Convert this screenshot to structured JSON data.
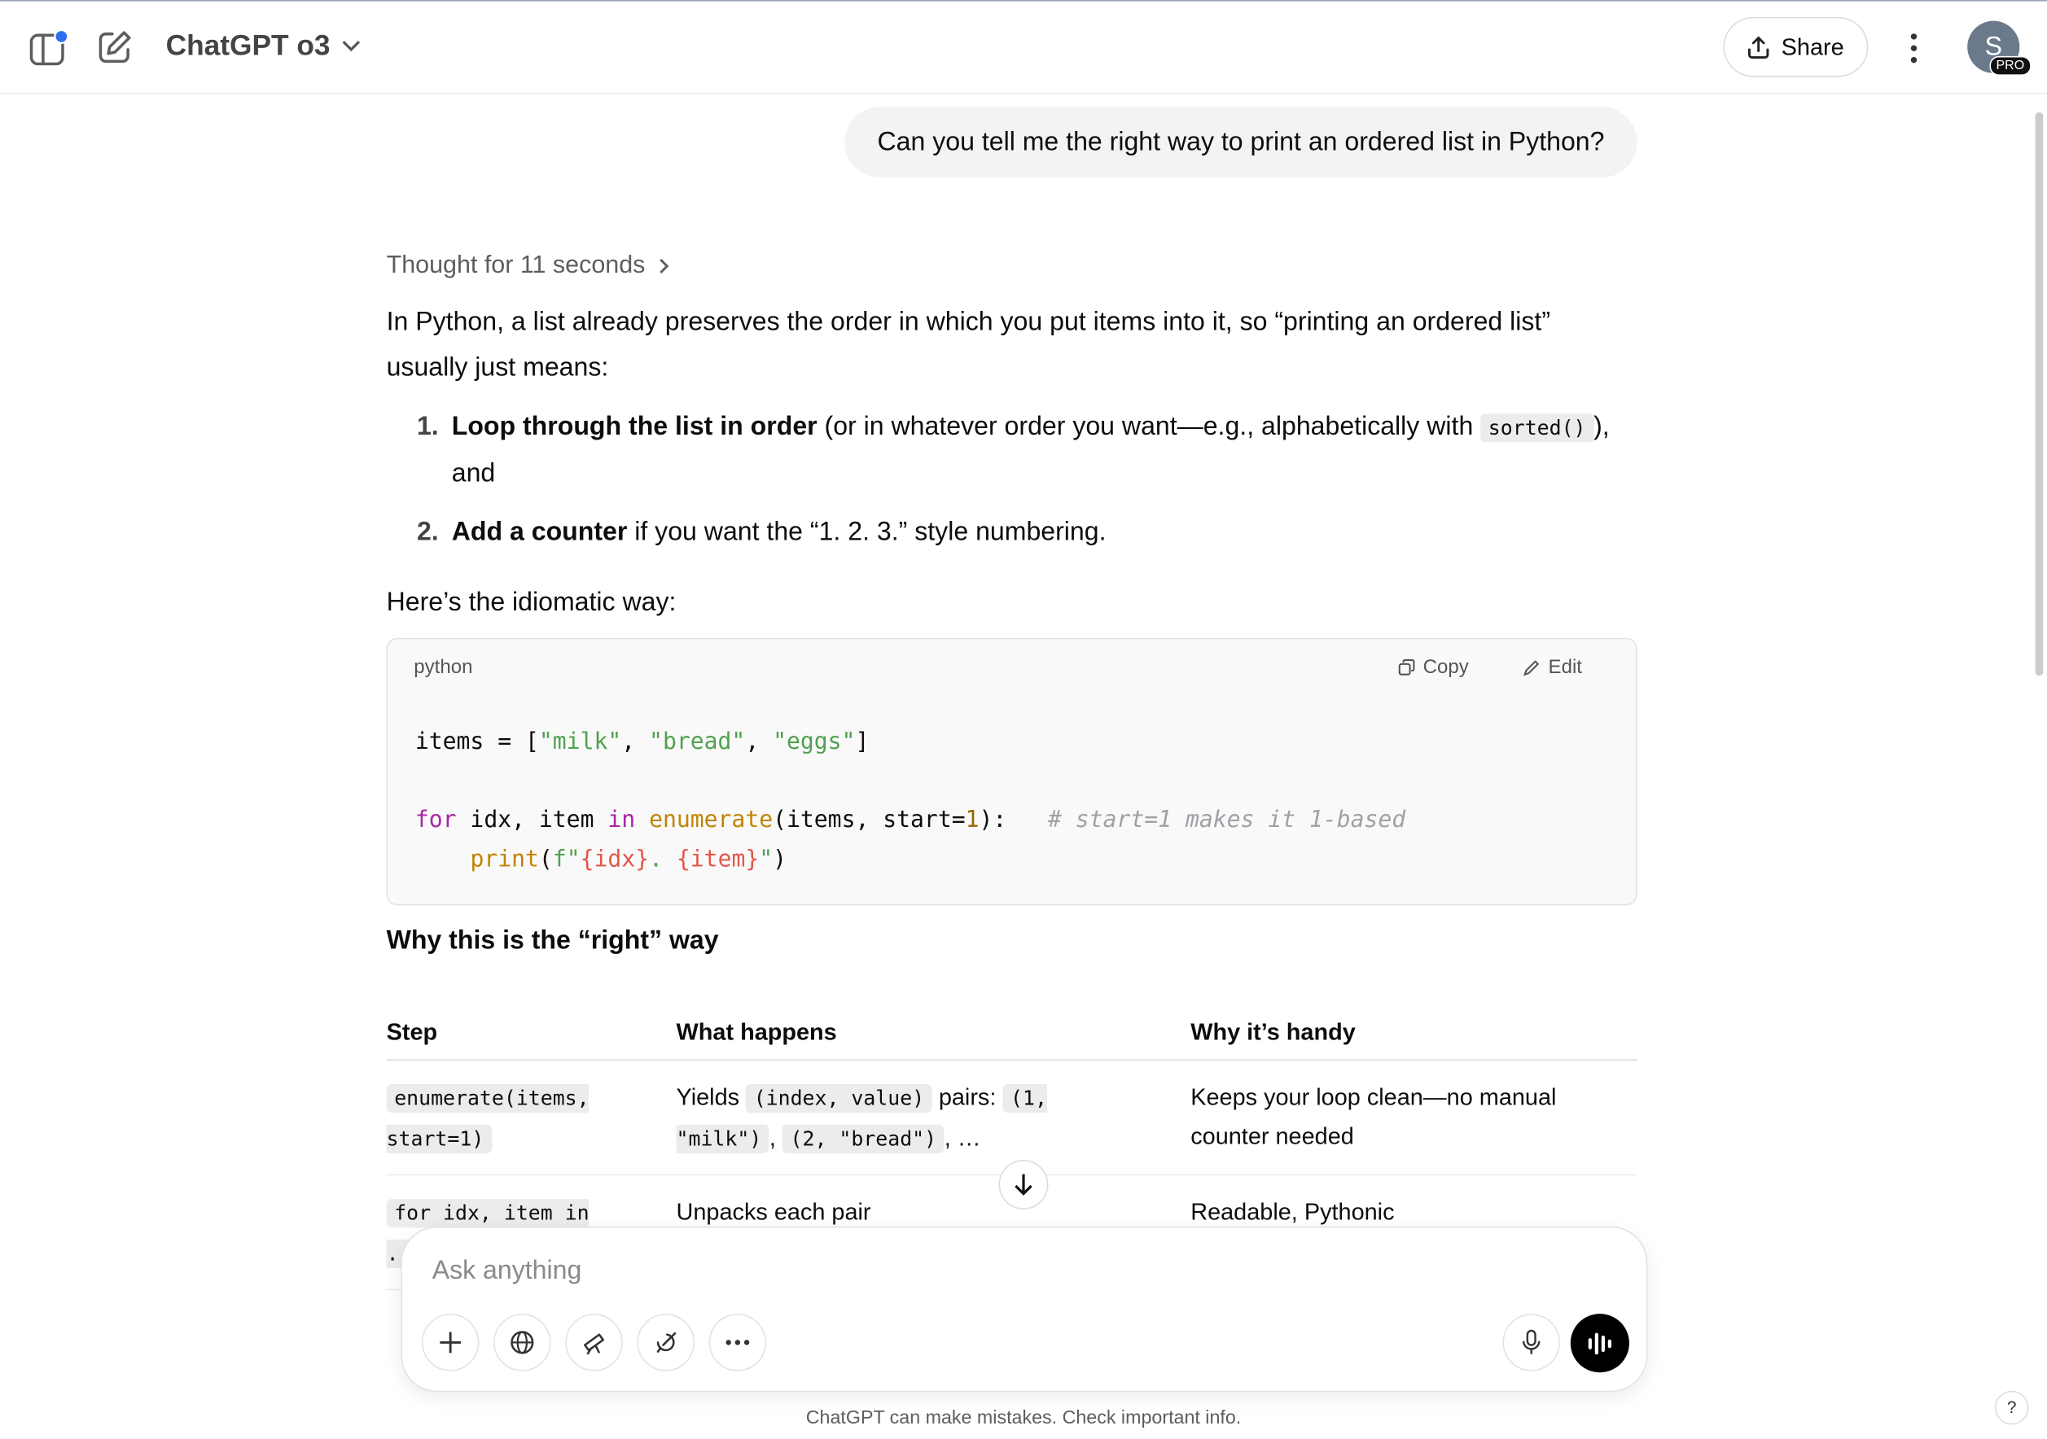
{
  "header": {
    "title": "ChatGPT o3",
    "share": "Share",
    "avatar": "S",
    "badge": "PRO"
  },
  "user_message": "Can you tell me the right way to print an ordered list in Python?",
  "response": {
    "thought": "Thought for 11 seconds",
    "intro": [
      {
        "text": "In Python, a list already preserves the order in which you put items into it, so “printing an ordered list” usually just means:"
      }
    ],
    "list": [
      {
        "number": "1.",
        "segments": [
          {
            "text": "Loop through the list in order",
            "style": "bold"
          },
          {
            "text": " (or in whatever order you want—e.g., alphabetically with "
          },
          {
            "text": "sorted()",
            "style": "code"
          },
          {
            "text": "), and"
          }
        ]
      },
      {
        "number": "2.",
        "segments": [
          {
            "text": "Add a counter",
            "style": "bold"
          },
          {
            "text": " if you want the “1. 2. 3.” style numbering."
          }
        ]
      }
    ],
    "lead": [
      {
        "text": "Here’s the idiomatic way:"
      }
    ],
    "code": {
      "language": "python",
      "copy": "Copy",
      "edit": "Edit",
      "lines": [
        [
          {
            "text": "items = ["
          },
          {
            "text": "\"milk\"",
            "style": "string"
          },
          {
            "text": ", "
          },
          {
            "text": "\"bread\"",
            "style": "string"
          },
          {
            "text": ", "
          },
          {
            "text": "\"eggs\"",
            "style": "string"
          },
          {
            "text": "]"
          }
        ],
        [],
        [
          {
            "text": "for",
            "style": "keyword"
          },
          {
            "text": " idx, item "
          },
          {
            "text": "in",
            "style": "keyword"
          },
          {
            "text": " "
          },
          {
            "text": "enumerate",
            "style": "builtin"
          },
          {
            "text": "(items, start="
          },
          {
            "text": "1",
            "style": "number"
          },
          {
            "text": "):   "
          },
          {
            "text": "# start=1 makes it 1-based",
            "style": "comment"
          }
        ],
        [
          {
            "text": "    "
          },
          {
            "text": "print",
            "style": "builtin"
          },
          {
            "text": "("
          },
          {
            "text": "f\"",
            "style": "string"
          },
          {
            "text": "{idx}",
            "style": "variable"
          },
          {
            "text": ". ",
            "style": "string"
          },
          {
            "text": "{item}",
            "style": "variable"
          },
          {
            "text": "\"",
            "style": "string"
          },
          {
            "text": ")"
          }
        ]
      ]
    },
    "heading": "Why this is the “right” way",
    "table": {
      "header": [
        "Step",
        "What happens",
        "Why it’s handy"
      ],
      "rows": [
        [
          [
            {
              "text": "enumerate(items, start=1)",
              "style": "code"
            }
          ],
          [
            {
              "text": "Yields "
            },
            {
              "text": "(index, value)",
              "style": "code"
            },
            {
              "text": " pairs: "
            },
            {
              "text": "(1, \"milk\")",
              "style": "code"
            },
            {
              "text": ", "
            },
            {
              "text": "(2, \"bread\")",
              "style": "code"
            },
            {
              "text": ", …"
            }
          ],
          [
            {
              "text": "Keeps your loop clean—no manual counter needed"
            }
          ]
        ],
        [
          [
            {
              "text": "for idx, item in ...",
              "style": "code"
            }
          ],
          [
            {
              "text": "Unpacks each pair"
            }
          ],
          [
            {
              "text": "Readable, Pythonic"
            }
          ]
        ]
      ]
    }
  },
  "composer": {
    "placeholder": "Ask anything"
  },
  "footer": "ChatGPT can make mistakes. Check important info.",
  "help": "?"
}
